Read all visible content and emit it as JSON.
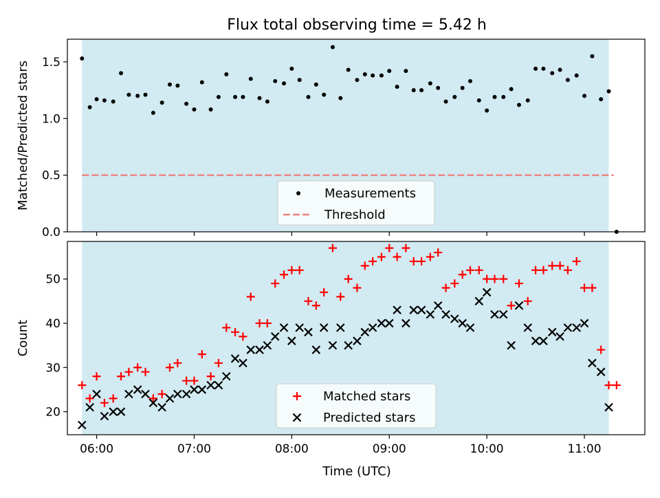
{
  "chart_data": {
    "title": "Flux total observing time = 5.42 h",
    "xlabel": "Time (UTC)",
    "x_unit": "hours UTC",
    "xlim": [
      5.7,
      11.62
    ],
    "xticks": [
      {
        "value": 6,
        "label": "06:00"
      },
      {
        "value": 7,
        "label": "07:00"
      },
      {
        "value": 8,
        "label": "08:00"
      },
      {
        "value": 9,
        "label": "09:00"
      },
      {
        "value": 10,
        "label": "10:00"
      },
      {
        "value": 11,
        "label": "11:00"
      }
    ],
    "observing_window": [
      5.85,
      11.25
    ],
    "colors": {
      "span": "#add8e6",
      "measure": "#000000",
      "threshold": "#f08080",
      "matched": "#ff0000",
      "predicted": "#000000"
    },
    "panels": [
      {
        "type": "scatter",
        "ylabel": "Matched/Predicted stars",
        "ylim": [
          0,
          1.7
        ],
        "yticks": [
          {
            "value": 0,
            "label": "0.0"
          },
          {
            "value": 0.5,
            "label": "0.5"
          },
          {
            "value": 1,
            "label": "1.0"
          },
          {
            "value": 1.5,
            "label": "1.5"
          }
        ],
        "threshold": 0.5,
        "legend": [
          "Measurements",
          "Threshold"
        ],
        "legend_position": "bottom-center",
        "series": [
          {
            "name": "Measurements",
            "marker": "dot",
            "x": [
              5.85,
              5.93,
              6.0,
              6.08,
              6.17,
              6.25,
              6.33,
              6.42,
              6.5,
              6.58,
              6.67,
              6.75,
              6.83,
              6.92,
              7.0,
              7.08,
              7.17,
              7.25,
              7.33,
              7.42,
              7.5,
              7.58,
              7.67,
              7.75,
              7.83,
              7.92,
              8.0,
              8.08,
              8.17,
              8.25,
              8.33,
              8.42,
              8.5,
              8.58,
              8.67,
              8.75,
              8.83,
              8.92,
              9.0,
              9.08,
              9.17,
              9.25,
              9.33,
              9.42,
              9.5,
              9.58,
              9.67,
              9.75,
              9.83,
              9.92,
              10.0,
              10.08,
              10.17,
              10.25,
              10.33,
              10.42,
              10.5,
              10.58,
              10.67,
              10.75,
              10.83,
              10.92,
              11.0,
              11.08,
              11.17,
              11.25,
              11.33
            ],
            "y": [
              1.53,
              1.1,
              1.17,
              1.16,
              1.15,
              1.4,
              1.21,
              1.2,
              1.21,
              1.05,
              1.14,
              1.3,
              1.29,
              1.13,
              1.08,
              1.32,
              1.08,
              1.19,
              1.39,
              1.19,
              1.19,
              1.35,
              1.18,
              1.15,
              1.33,
              1.31,
              1.44,
              1.34,
              1.19,
              1.3,
              1.21,
              1.63,
              1.18,
              1.43,
              1.34,
              1.39,
              1.38,
              1.38,
              1.42,
              1.28,
              1.42,
              1.25,
              1.25,
              1.31,
              1.27,
              1.15,
              1.19,
              1.27,
              1.33,
              1.16,
              1.07,
              1.19,
              1.19,
              1.26,
              1.12,
              1.16,
              1.44,
              1.44,
              1.4,
              1.43,
              1.34,
              1.38,
              1.2,
              1.55,
              1.17,
              1.24,
              0.0
            ]
          }
        ]
      },
      {
        "type": "scatter",
        "ylabel": "Count",
        "ylim": [
          14.8,
          58.5
        ],
        "yticks": [
          {
            "value": 20,
            "label": "20"
          },
          {
            "value": 30,
            "label": "30"
          },
          {
            "value": 40,
            "label": "40"
          },
          {
            "value": 50,
            "label": "50"
          }
        ],
        "legend": [
          "Matched stars",
          "Predicted stars"
        ],
        "legend_position": "bottom-center",
        "series": [
          {
            "name": "Matched stars",
            "marker": "plus",
            "x": [
              5.85,
              5.93,
              6.0,
              6.08,
              6.17,
              6.25,
              6.33,
              6.42,
              6.5,
              6.58,
              6.67,
              6.75,
              6.83,
              6.92,
              7.0,
              7.08,
              7.17,
              7.25,
              7.33,
              7.42,
              7.5,
              7.58,
              7.67,
              7.75,
              7.83,
              7.92,
              8.0,
              8.08,
              8.17,
              8.25,
              8.33,
              8.42,
              8.5,
              8.58,
              8.67,
              8.75,
              8.83,
              8.92,
              9.0,
              9.08,
              9.17,
              9.25,
              9.33,
              9.42,
              9.5,
              9.58,
              9.67,
              9.75,
              9.83,
              9.92,
              10.0,
              10.08,
              10.17,
              10.25,
              10.33,
              10.42,
              10.5,
              10.58,
              10.67,
              10.75,
              10.83,
              10.92,
              11.0,
              11.08,
              11.17,
              11.25,
              11.33
            ],
            "y": [
              26,
              23,
              28,
              22,
              23,
              28,
              29,
              30,
              29,
              23,
              24,
              30,
              31,
              27,
              27,
              33,
              28,
              31,
              39,
              38,
              37,
              46,
              40,
              40,
              49,
              51,
              52,
              52,
              45,
              44,
              47,
              57,
              46,
              50,
              48,
              53,
              54,
              55,
              57,
              55,
              57,
              54,
              54,
              55,
              56,
              48,
              49,
              51,
              52,
              52,
              50,
              50,
              50,
              44,
              49,
              45,
              52,
              52,
              53,
              53,
              52,
              54,
              48,
              48,
              34,
              26,
              26
            ]
          },
          {
            "name": "Predicted stars",
            "marker": "x",
            "x": [
              5.85,
              5.93,
              6.0,
              6.08,
              6.17,
              6.25,
              6.33,
              6.42,
              6.5,
              6.58,
              6.67,
              6.75,
              6.83,
              6.92,
              7.0,
              7.08,
              7.17,
              7.25,
              7.33,
              7.42,
              7.5,
              7.58,
              7.67,
              7.75,
              7.83,
              7.92,
              8.0,
              8.08,
              8.17,
              8.25,
              8.33,
              8.42,
              8.5,
              8.58,
              8.67,
              8.75,
              8.83,
              8.92,
              9.0,
              9.08,
              9.17,
              9.25,
              9.33,
              9.42,
              9.5,
              9.58,
              9.67,
              9.75,
              9.83,
              9.92,
              10.0,
              10.08,
              10.17,
              10.25,
              10.33,
              10.42,
              10.5,
              10.58,
              10.67,
              10.75,
              10.83,
              10.92,
              11.0,
              11.08,
              11.17,
              11.25
            ],
            "y": [
              17,
              21,
              24,
              19,
              20,
              20,
              24,
              25,
              24,
              22,
              21,
              23,
              24,
              24,
              25,
              25,
              26,
              26,
              28,
              32,
              31,
              34,
              34,
              35,
              37,
              39,
              36,
              39,
              38,
              34,
              39,
              35,
              39,
              35,
              36,
              38,
              39,
              40,
              40,
              43,
              40,
              43,
              43,
              42,
              44,
              42,
              41,
              40,
              39,
              45,
              47,
              42,
              42,
              35,
              44,
              39,
              36,
              36,
              38,
              37,
              39,
              39,
              40,
              31,
              29,
              21
            ]
          }
        ]
      }
    ]
  }
}
